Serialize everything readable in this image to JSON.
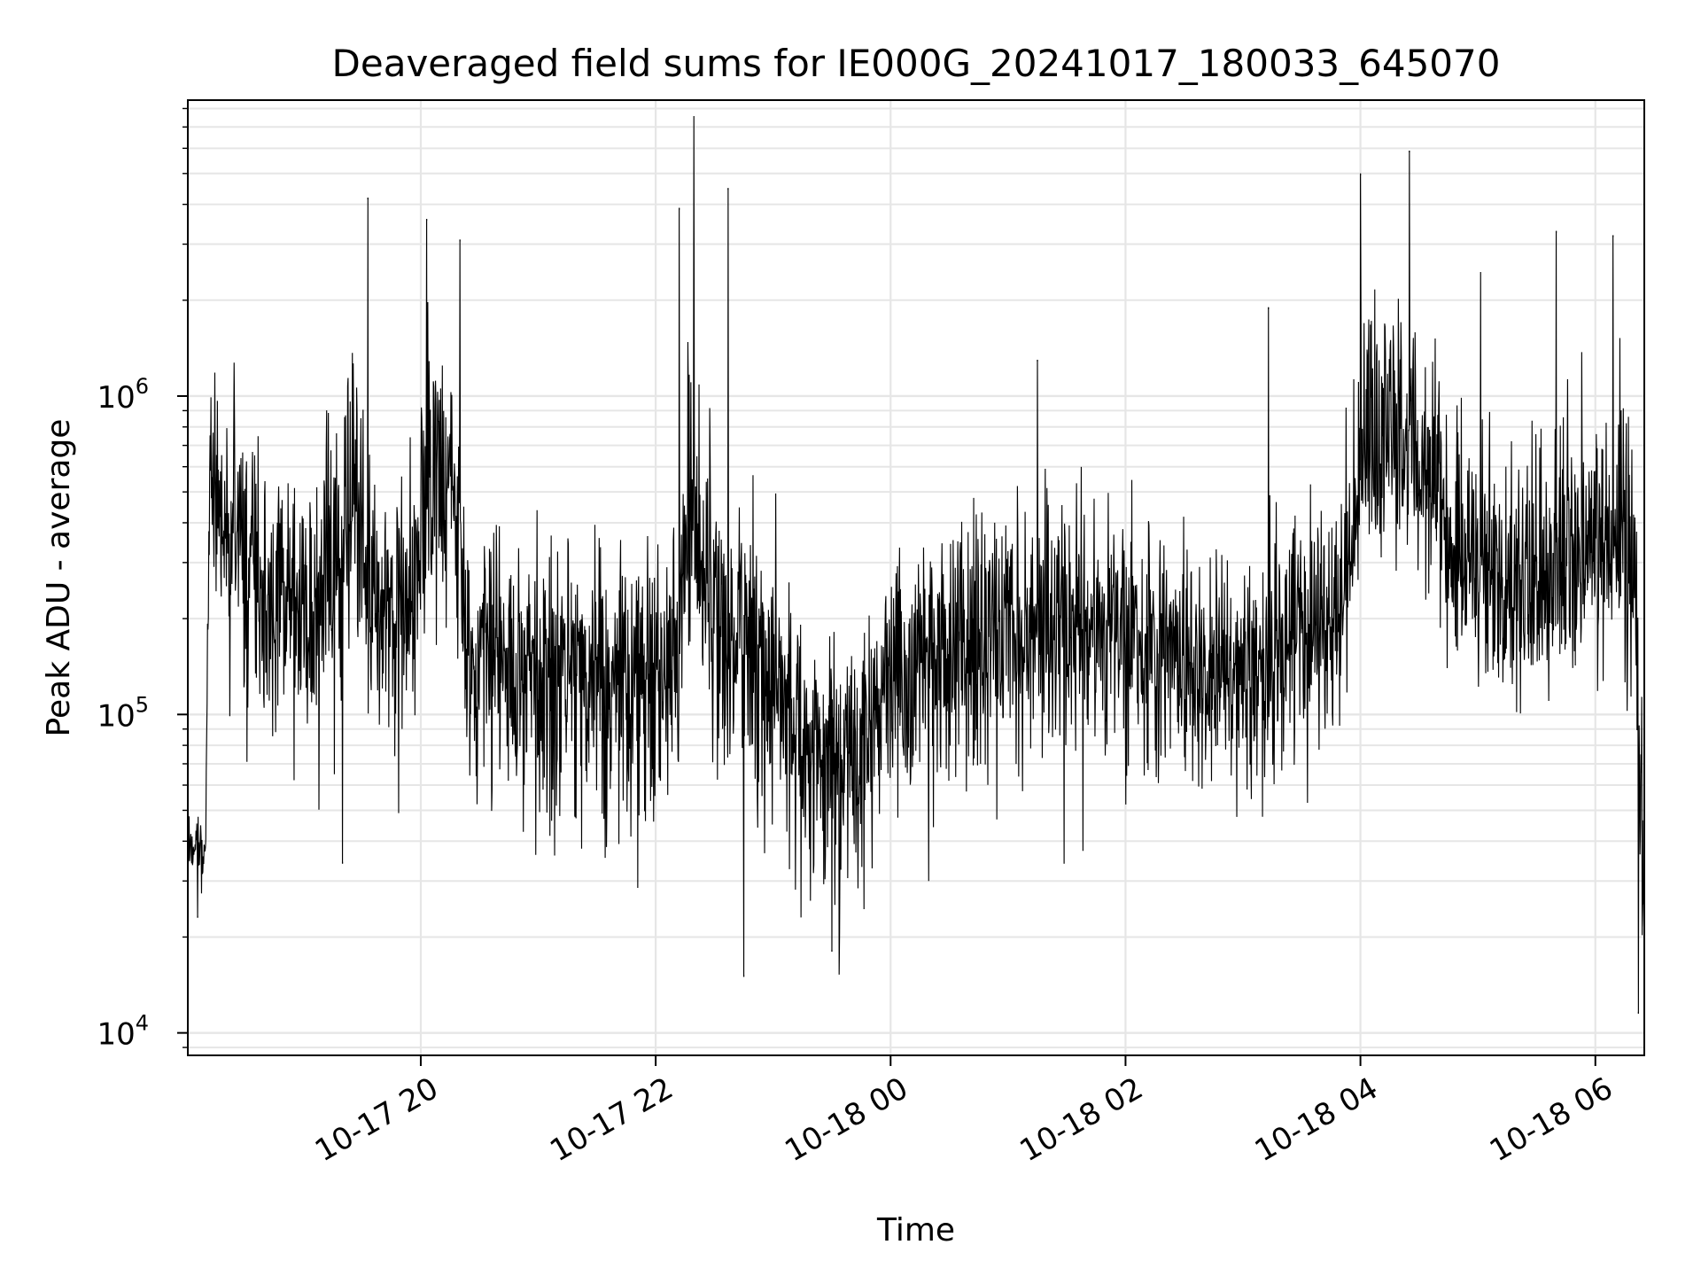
{
  "chart_data": {
    "type": "line",
    "title": "Deaveraged field sums for IE000G_20241017_180033_645070",
    "xlabel": "Time",
    "ylabel": "Peak ADU - average",
    "y_scale": "log",
    "ylim": [
      8500,
      8500000
    ],
    "xlim": [
      "2024-10-17 18:01",
      "2024-10-18 06:25"
    ],
    "grid": true,
    "line_color": "#000000",
    "grid_color": "#e6e6e6",
    "x_ticks": [
      {
        "t": "2024-10-17 20:00",
        "label": "10-17 20"
      },
      {
        "t": "2024-10-17 22:00",
        "label": "10-17 22"
      },
      {
        "t": "2024-10-18 00:00",
        "label": "10-18 00"
      },
      {
        "t": "2024-10-18 02:00",
        "label": "10-18 02"
      },
      {
        "t": "2024-10-18 04:00",
        "label": "10-18 04"
      },
      {
        "t": "2024-10-18 06:00",
        "label": "10-18 06"
      }
    ],
    "y_ticks": [
      {
        "value": 10000,
        "base": "10",
        "exp": "4"
      },
      {
        "value": 100000,
        "base": "10",
        "exp": "5"
      },
      {
        "value": 1000000,
        "base": "10",
        "exp": "6"
      }
    ],
    "envelope": {
      "t": [
        "2024-10-17 18:01",
        "2024-10-17 18:10",
        "2024-10-17 18:12",
        "2024-10-17 18:20",
        "2024-10-17 18:30",
        "2024-10-17 18:45",
        "2024-10-17 19:00",
        "2024-10-17 19:15",
        "2024-10-17 19:25",
        "2024-10-17 19:35",
        "2024-10-17 19:45",
        "2024-10-17 19:55",
        "2024-10-17 20:05",
        "2024-10-17 20:15",
        "2024-10-17 20:25",
        "2024-10-17 20:40",
        "2024-10-17 21:00",
        "2024-10-17 21:20",
        "2024-10-17 21:40",
        "2024-10-17 21:55",
        "2024-10-17 22:10",
        "2024-10-17 22:20",
        "2024-10-17 22:30",
        "2024-10-17 22:40",
        "2024-10-17 22:45",
        "2024-10-17 22:55",
        "2024-10-17 23:10",
        "2024-10-17 23:30",
        "2024-10-17 23:45",
        "2024-10-18 00:00",
        "2024-10-18 00:20",
        "2024-10-18 00:45",
        "2024-10-18 01:10",
        "2024-10-18 01:30",
        "2024-10-18 02:00",
        "2024-10-18 02:30",
        "2024-10-18 03:00",
        "2024-10-18 03:15",
        "2024-10-18 03:30",
        "2024-10-18 03:50",
        "2024-10-18 04:00",
        "2024-10-18 04:15",
        "2024-10-18 04:30",
        "2024-10-18 04:45",
        "2024-10-18 05:00",
        "2024-10-18 05:20",
        "2024-10-18 05:40",
        "2024-10-18 06:00",
        "2024-10-18 06:12",
        "2024-10-18 06:20",
        "2024-10-18 06:25"
      ],
      "center": [
        38000,
        38000,
        550000,
        380000,
        300000,
        250000,
        220000,
        280000,
        380000,
        250000,
        220000,
        230000,
        700000,
        550000,
        160000,
        150000,
        140000,
        140000,
        130000,
        120000,
        150000,
        450000,
        220000,
        140000,
        260000,
        120000,
        90000,
        70000,
        75000,
        120000,
        150000,
        170000,
        180000,
        190000,
        170000,
        140000,
        130000,
        140000,
        180000,
        200000,
        650000,
        700000,
        550000,
        380000,
        280000,
        260000,
        280000,
        320000,
        350000,
        300000,
        22000
      ],
      "lo_span": [
        1.4,
        1.4,
        2.2,
        3.5,
        4.0,
        4.0,
        4.0,
        3.8,
        3.5,
        3.5,
        3.5,
        3.2,
        3.5,
        4.0,
        4.0,
        4.0,
        4.0,
        4.0,
        4.0,
        4.0,
        4.0,
        3.5,
        4.0,
        4.0,
        4.0,
        4.0,
        4.0,
        4.0,
        4.0,
        3.5,
        3.5,
        3.2,
        3.2,
        3.2,
        3.0,
        3.0,
        3.0,
        3.0,
        3.0,
        2.5,
        2.2,
        2.2,
        2.5,
        3.0,
        3.0,
        3.0,
        3.0,
        2.8,
        2.5,
        3.5,
        1.6
      ],
      "hi_span": [
        1.4,
        1.4,
        2.0,
        2.6,
        3.0,
        3.0,
        3.0,
        5.0,
        7.0,
        3.0,
        3.0,
        3.0,
        4.5,
        3.0,
        3.0,
        3.0,
        3.0,
        3.0,
        3.0,
        3.0,
        3.0,
        6.0,
        3.0,
        3.0,
        3.0,
        3.0,
        3.0,
        3.0,
        3.0,
        3.0,
        3.0,
        3.0,
        3.0,
        3.0,
        3.0,
        3.0,
        3.0,
        3.0,
        4.0,
        3.0,
        5.0,
        5.0,
        3.5,
        3.5,
        3.5,
        3.5,
        3.5,
        3.5,
        4.5,
        4.0,
        2.5
      ]
    },
    "peaks": [
      {
        "t": "2024-10-17 19:33",
        "value": 4200000
      },
      {
        "t": "2024-10-17 20:03",
        "value": 3600000
      },
      {
        "t": "2024-10-17 20:20",
        "value": 3100000
      },
      {
        "t": "2024-10-17 22:12",
        "value": 3900000
      },
      {
        "t": "2024-10-17 22:37",
        "value": 4500000
      },
      {
        "t": "2024-10-18 04:25",
        "value": 5900000
      },
      {
        "t": "2024-10-18 04:00",
        "value": 5000000
      },
      {
        "t": "2024-10-18 06:09",
        "value": 3200000
      },
      {
        "t": "2024-10-18 05:40",
        "value": 3300000
      },
      {
        "t": "2024-10-18 03:13",
        "value": 1900000
      },
      {
        "t": "2024-10-18 01:15",
        "value": 1300000
      }
    ],
    "dips": [
      {
        "t": "2024-10-17 22:45",
        "value": 15000
      },
      {
        "t": "2024-10-17 23:30",
        "value": 18000
      },
      {
        "t": "2024-10-17 19:20",
        "value": 34000
      },
      {
        "t": "2024-10-18 06:22",
        "value": 11500
      },
      {
        "t": "2024-10-17 18:06",
        "value": 23000
      }
    ]
  }
}
